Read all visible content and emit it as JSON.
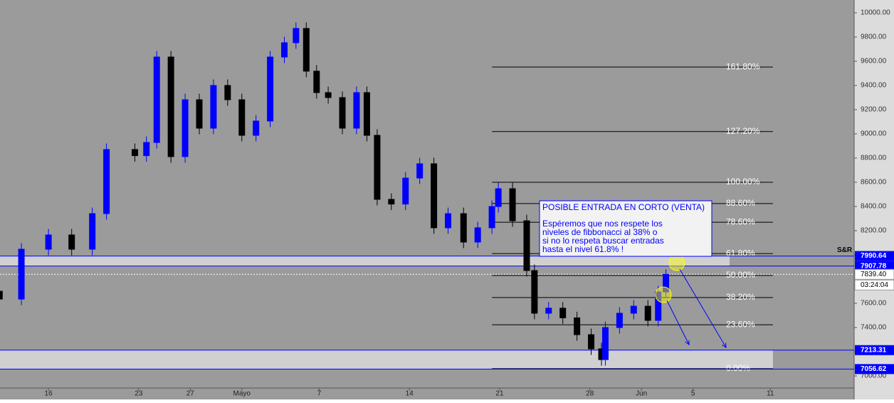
{
  "chart_data": {
    "type": "candlestick",
    "x": [
      12.2,
      13.9,
      16,
      17.8,
      19.4,
      20.5,
      22.7,
      23.6,
      24.4,
      25.5,
      26.6,
      27.7,
      28.8,
      29.9,
      31,
      32.1,
      33.2,
      34.3,
      35.2,
      36,
      36.8,
      37.7,
      38.8,
      39.9,
      40.7,
      41.5,
      42.6,
      43.7,
      44.8,
      45.9,
      47,
      48.2,
      49.3,
      50.4,
      50.9,
      52,
      53.1,
      53.7,
      54.8,
      55.9,
      57,
      58.1,
      58.9,
      59.2,
      60.3,
      61.4,
      62.5,
      63.3,
      63.9
    ],
    "open": [
      7700,
      7635,
      8047,
      8165,
      8047,
      8341,
      8871,
      8820,
      8929,
      9635,
      8812,
      9282,
      9047,
      9400,
      9282,
      8988,
      9106,
      9635,
      9753,
      9871,
      9518,
      9341,
      9300,
      9047,
      9341,
      8988,
      8459,
      8420,
      8635,
      8753,
      8224,
      8341,
      8106,
      8224,
      8400,
      8547,
      8282,
      7871,
      7518,
      7560,
      7480,
      7341,
      7224,
      7135,
      7400,
      7518,
      7576,
      7459,
      7694
    ],
    "high": [
      7750,
      8097,
      8215,
      8215,
      8391,
      8921,
      8921,
      8979,
      9685,
      9685,
      9332,
      9332,
      9450,
      9450,
      9332,
      9156,
      9685,
      9803,
      9921,
      9921,
      9568,
      9391,
      9350,
      9391,
      9391,
      9038,
      8509,
      8685,
      8803,
      8803,
      8391,
      8391,
      8274,
      8450,
      8597,
      8597,
      8332,
      7921,
      7610,
      7610,
      7530,
      7391,
      7274,
      7450,
      7568,
      7626,
      7626,
      7744,
      7880
    ],
    "low": [
      7585,
      7585,
      7997,
      7997,
      7997,
      8291,
      8770,
      8770,
      8879,
      8762,
      8762,
      8997,
      8997,
      9232,
      8938,
      8938,
      9056,
      9585,
      9703,
      9468,
      9291,
      9250,
      8997,
      8997,
      8938,
      8409,
      8370,
      8370,
      8585,
      8174,
      8174,
      8056,
      8056,
      8174,
      8350,
      8232,
      7821,
      7468,
      7468,
      7430,
      7291,
      7174,
      7085,
      7085,
      7350,
      7468,
      7409,
      7409,
      7650
    ],
    "close": [
      7635,
      8047,
      8165,
      8047,
      8341,
      8871,
      8820,
      8929,
      9635,
      8812,
      9282,
      9047,
      9400,
      9282,
      8988,
      9106,
      9635,
      9753,
      9871,
      9518,
      9341,
      9300,
      9047,
      9341,
      8988,
      8459,
      8420,
      8635,
      8753,
      8224,
      8341,
      8106,
      8224,
      8400,
      8547,
      8282,
      7871,
      7518,
      7560,
      7480,
      7341,
      7224,
      7135,
      7400,
      7518,
      7576,
      7459,
      7694,
      7839.4
    ],
    "up_color": "#0000ff",
    "down_color": "#000000",
    "xlim": [
      12.24,
      78.5
    ],
    "ylim": [
      6900,
      10106
    ],
    "xticks": [
      16,
      23,
      27,
      {
        "value": 31,
        "label": "Mayo"
      },
      {
        "value": 37,
        "label": "7"
      },
      {
        "value": 44,
        "label": "14"
      },
      {
        "value": 51,
        "label": "21"
      },
      {
        "value": 58,
        "label": "28"
      },
      {
        "value": 62,
        "label": "Jun"
      },
      {
        "value": 66,
        "label": "5"
      },
      {
        "value": 72,
        "label": "11"
      }
    ],
    "yticks": [
      {
        "value": 10000,
        "label": "10000.00"
      },
      {
        "value": 9800,
        "label": "9800.00"
      },
      {
        "value": 9600,
        "label": "9600.00"
      },
      {
        "value": 9400,
        "label": "9400.00"
      },
      {
        "value": 9200,
        "label": "9200.00"
      },
      {
        "value": 9000,
        "label": "9000.00"
      },
      {
        "value": 8800,
        "label": "8800.00"
      },
      {
        "value": 8600,
        "label": "8600.00"
      },
      {
        "value": 8400,
        "label": "8400.00"
      },
      {
        "value": 8200,
        "label": "8200.00"
      },
      {
        "value": 8000,
        "label": "8000.00"
      },
      {
        "value": 7800,
        "label": "7800.00"
      },
      {
        "value": 7600,
        "label": "7600.00"
      },
      {
        "value": 7400,
        "label": "7400.00"
      },
      {
        "value": 7200,
        "label": "7200.00"
      },
      {
        "value": 7000,
        "label": "7000.00"
      }
    ],
    "fib_levels": [
      {
        "value": 9552,
        "label": "161.80%"
      },
      {
        "value": 9019,
        "label": "127.20%"
      },
      {
        "value": 8600,
        "label": "100.00%"
      },
      {
        "value": 8424,
        "label": "88.60%"
      },
      {
        "value": 8270,
        "label": "78.60%"
      },
      {
        "value": 8011,
        "label": "61.80%"
      },
      {
        "value": 7830,
        "label": "50.00%"
      },
      {
        "value": 7648,
        "label": "38.20%"
      },
      {
        "value": 7423,
        "label": "23.60%"
      },
      {
        "value": 7060,
        "label": "0.00%"
      }
    ],
    "levels": [
      7990.64,
      7907.78,
      7213.31,
      7056.62
    ],
    "levels_label": "S&R",
    "price": {
      "value": 7839.4,
      "label": "7839.40"
    },
    "countdown": "03:24:04",
    "note_title": "POSIBLE ENTRADA EN CORTO (VENTA)",
    "note_lines": [
      "Espéremos que nos respete los",
      "niveles de fibbonacci al 38% o",
      "si no lo respeta buscar entradas",
      "hasta el nivel 61.8% !"
    ]
  }
}
